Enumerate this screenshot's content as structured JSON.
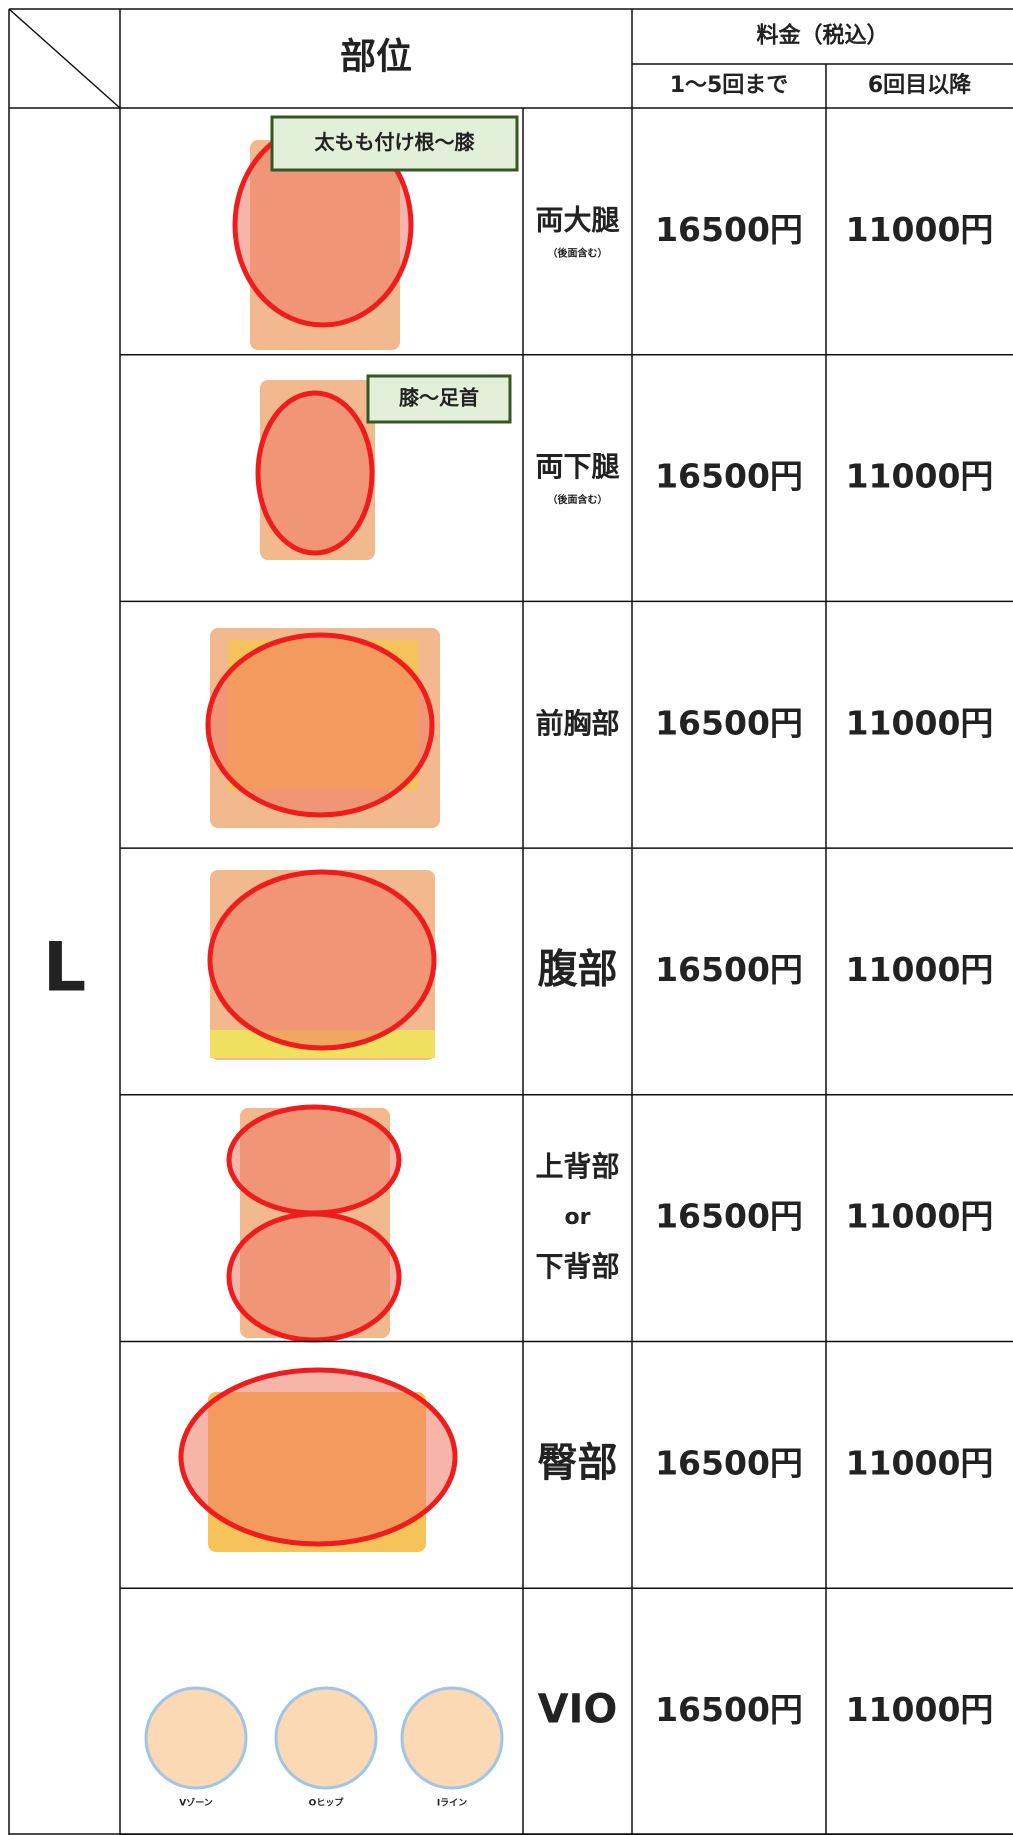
{
  "header": {
    "part": "部位",
    "price": "料金（税込）",
    "price1": "1〜5回まで",
    "price2": "6回目以降"
  },
  "category": "L",
  "rows": [
    {
      "tag": "太もも付け根〜膝",
      "name": [
        "両大腿"
      ],
      "note": "（後面含む）",
      "price1": "16500円",
      "price2": "11000円"
    },
    {
      "tag": "膝〜足首",
      "name": [
        "両下腿"
      ],
      "note": "（後面含む）",
      "price1": "16500円",
      "price2": "11000円"
    },
    {
      "name": [
        "前胸部"
      ],
      "price1": "16500円",
      "price2": "11000円"
    },
    {
      "name": [
        "腹部"
      ],
      "price1": "16500円",
      "price2": "11000円"
    },
    {
      "name": [
        "上背部",
        "or",
        "下背部"
      ],
      "price1": "16500円",
      "price2": "11000円"
    },
    {
      "name": [
        "臀部"
      ],
      "price1": "16500円",
      "price2": "11000円"
    },
    {
      "name": [
        "VIO"
      ],
      "zones": [
        "Vゾーン",
        "Oヒップ",
        "Iライン"
      ],
      "price1": "16500円",
      "price2": "11000円"
    }
  ]
}
